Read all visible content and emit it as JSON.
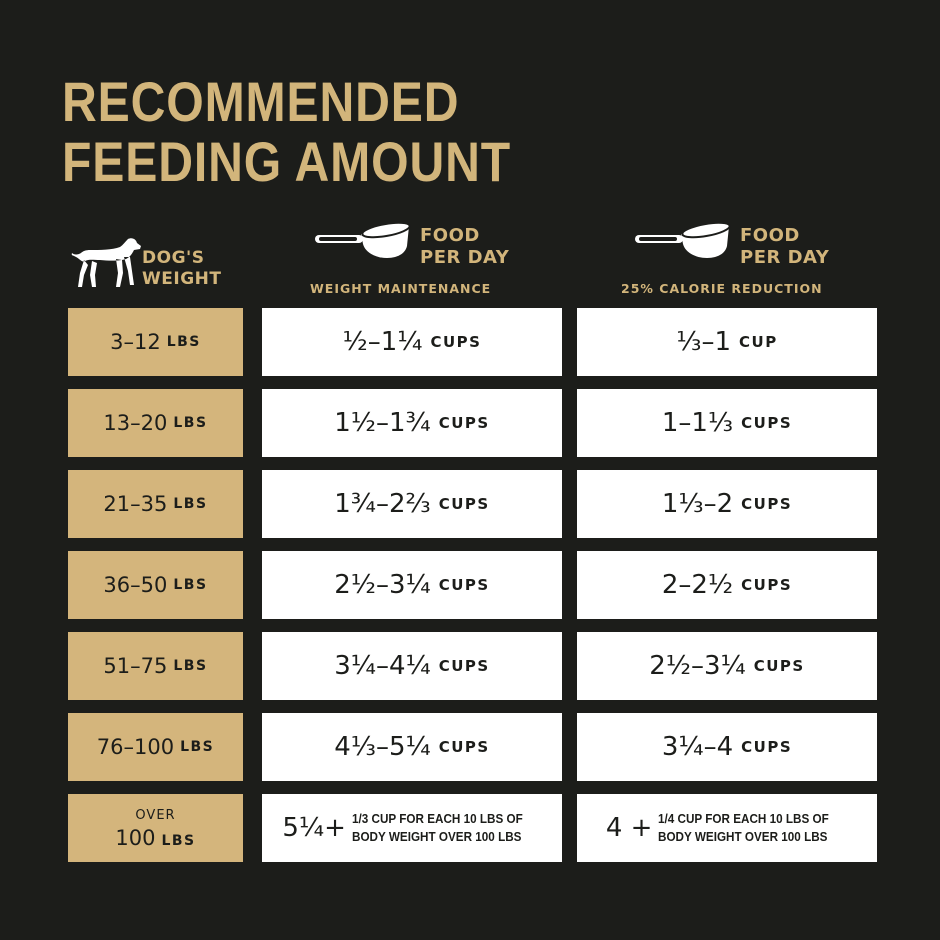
{
  "title": {
    "line1": "RECOMMENDED",
    "line2": "FEEDING AMOUNT"
  },
  "header": {
    "weight_line1": "DOG'S",
    "weight_line2": "WEIGHT",
    "food_line1": "FOOD",
    "food_line2": "PER DAY",
    "col1_sub": "WEIGHT MAINTENANCE",
    "col2_sub": "25% CALORIE REDUCTION"
  },
  "rows": [
    {
      "weight": "3–12",
      "weight_unit": "LBS",
      "maint": "½–1¼",
      "maint_unit": "CUPS",
      "reduced": "⅓–1",
      "reduced_unit": "CUP"
    },
    {
      "weight": "13–20",
      "weight_unit": "LBS",
      "maint": "1½–1¾",
      "maint_unit": "CUPS",
      "reduced": "1–1⅓",
      "reduced_unit": "CUPS"
    },
    {
      "weight": "21–35",
      "weight_unit": "LBS",
      "maint": "1¾–2⅔",
      "maint_unit": "CUPS",
      "reduced": "1⅓–2",
      "reduced_unit": "CUPS"
    },
    {
      "weight": "36–50",
      "weight_unit": "LBS",
      "maint": "2½–3¼",
      "maint_unit": "CUPS",
      "reduced": "2–2½",
      "reduced_unit": "CUPS"
    },
    {
      "weight": "51–75",
      "weight_unit": "LBS",
      "maint": "3¼–4¼",
      "maint_unit": "CUPS",
      "reduced": "2½–3¼",
      "reduced_unit": "CUPS"
    },
    {
      "weight": "76–100",
      "weight_unit": "LBS",
      "maint": "4⅓–5¼",
      "maint_unit": "CUPS",
      "reduced": "3¼–4",
      "reduced_unit": "CUPS"
    }
  ],
  "last_row": {
    "weight_top": "OVER",
    "weight": "100",
    "weight_unit": "LBS",
    "maint": "5¼+",
    "maint_note1": "1/3 CUP FOR EACH 10 LBS OF",
    "maint_note2": "BODY WEIGHT OVER 100 LBS",
    "reduced": "4 +",
    "reduced_note1": "1/4 CUP FOR EACH 10 LBS OF",
    "reduced_note2": "BODY WEIGHT OVER 100 LBS"
  },
  "colors": {
    "background": "#1c1d1a",
    "gold": "#d2b57b",
    "cell_gold": "#d4b57c",
    "cell_white": "#ffffff"
  }
}
